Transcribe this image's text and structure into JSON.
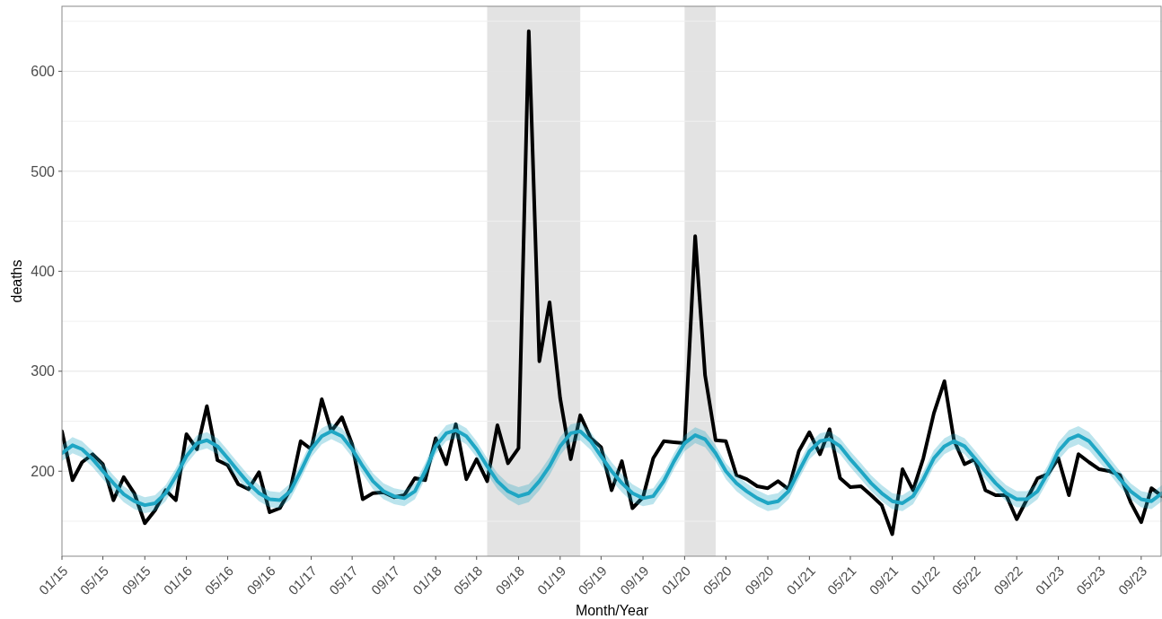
{
  "chart_data": {
    "type": "line",
    "xlabel": "Month/Year",
    "ylabel": "deaths",
    "x": [
      "2015-01",
      "2015-02",
      "2015-03",
      "2015-04",
      "2015-05",
      "2015-06",
      "2015-07",
      "2015-08",
      "2015-09",
      "2015-10",
      "2015-11",
      "2015-12",
      "2016-01",
      "2016-02",
      "2016-03",
      "2016-04",
      "2016-05",
      "2016-06",
      "2016-07",
      "2016-08",
      "2016-09",
      "2016-10",
      "2016-11",
      "2016-12",
      "2017-01",
      "2017-02",
      "2017-03",
      "2017-04",
      "2017-05",
      "2017-06",
      "2017-07",
      "2017-08",
      "2017-09",
      "2017-10",
      "2017-11",
      "2017-12",
      "2018-01",
      "2018-02",
      "2018-03",
      "2018-04",
      "2018-05",
      "2018-06",
      "2018-07",
      "2018-08",
      "2018-09",
      "2018-10",
      "2018-11",
      "2018-12",
      "2019-01",
      "2019-02",
      "2019-03",
      "2019-04",
      "2019-05",
      "2019-06",
      "2019-07",
      "2019-08",
      "2019-09",
      "2019-10",
      "2019-11",
      "2019-12",
      "2020-01",
      "2020-02",
      "2020-03",
      "2020-04",
      "2020-05",
      "2020-06",
      "2020-07",
      "2020-08",
      "2020-09",
      "2020-10",
      "2020-11",
      "2020-12",
      "2021-01",
      "2021-02",
      "2021-03",
      "2021-04",
      "2021-05",
      "2021-06",
      "2021-07",
      "2021-08",
      "2021-09",
      "2021-10",
      "2021-11",
      "2021-12",
      "2022-01",
      "2022-02",
      "2022-03",
      "2022-04",
      "2022-05",
      "2022-06",
      "2022-07",
      "2022-08",
      "2022-09",
      "2022-10",
      "2022-11",
      "2022-12",
      "2023-01",
      "2023-02",
      "2023-03",
      "2023-04",
      "2023-05",
      "2023-06",
      "2023-07",
      "2023-08",
      "2023-09",
      "2023-10",
      "2023-11"
    ],
    "series": [
      {
        "color": "#000000",
        "values": [
          240,
          191,
          209,
          217,
          207,
          171,
          194,
          178,
          148,
          161,
          181,
          171,
          237,
          222,
          265,
          211,
          206,
          187,
          182,
          199,
          159,
          163,
          182,
          230,
          222,
          272,
          240,
          254,
          227,
          172,
          178,
          179,
          174,
          176,
          193,
          191,
          233,
          207,
          247,
          192,
          212,
          190,
          246,
          208,
          223,
          640,
          310,
          369,
          273,
          212,
          256,
          233,
          224,
          181,
          210,
          163,
          174,
          213,
          230,
          229,
          228,
          435,
          296,
          231,
          230,
          196,
          192,
          185,
          183,
          190,
          182,
          220,
          239,
          217,
          242,
          193,
          184,
          185,
          176,
          166,
          137,
          202,
          181,
          213,
          258,
          290,
          231,
          207,
          212,
          181,
          176,
          176,
          152,
          172,
          193,
          197,
          213,
          176,
          217,
          209,
          202,
          200,
          196,
          169,
          149,
          183,
          175
        ]
      },
      {
        "color": "#1fa6c4",
        "values": [
          218,
          226,
          222,
          212,
          200,
          188,
          177,
          170,
          166,
          168,
          178,
          195,
          215,
          228,
          231,
          225,
          213,
          200,
          188,
          178,
          172,
          171,
          180,
          200,
          222,
          235,
          240,
          235,
          222,
          205,
          190,
          180,
          175,
          173,
          180,
          200,
          225,
          238,
          241,
          235,
          222,
          205,
          190,
          180,
          175,
          178,
          190,
          205,
          225,
          238,
          240,
          230,
          215,
          200,
          188,
          178,
          173,
          175,
          190,
          210,
          228,
          236,
          232,
          218,
          200,
          188,
          180,
          173,
          168,
          170,
          180,
          200,
          220,
          230,
          232,
          225,
          212,
          200,
          188,
          178,
          170,
          168,
          175,
          192,
          213,
          225,
          230,
          225,
          213,
          200,
          188,
          178,
          172,
          172,
          180,
          198,
          220,
          232,
          236,
          230,
          218,
          205,
          192,
          180,
          172,
          170,
          178
        ],
        "lower": [
          210,
          218,
          214,
          204,
          192,
          180,
          169,
          162,
          158,
          160,
          170,
          187,
          207,
          220,
          223,
          217,
          205,
          192,
          180,
          170,
          164,
          163,
          172,
          192,
          214,
          227,
          232,
          227,
          214,
          197,
          182,
          172,
          167,
          165,
          172,
          192,
          217,
          230,
          233,
          227,
          214,
          197,
          182,
          172,
          166,
          169,
          181,
          196,
          216,
          229,
          231,
          221,
          206,
          191,
          179,
          169,
          165,
          167,
          182,
          202,
          220,
          228,
          224,
          210,
          192,
          180,
          172,
          165,
          160,
          162,
          172,
          192,
          212,
          222,
          224,
          217,
          204,
          192,
          180,
          170,
          162,
          160,
          167,
          184,
          205,
          217,
          222,
          217,
          205,
          192,
          180,
          170,
          164,
          164,
          172,
          190,
          211,
          223,
          227,
          221,
          209,
          197,
          184,
          172,
          164,
          162,
          170
        ],
        "upper": [
          226,
          234,
          230,
          220,
          208,
          196,
          185,
          178,
          174,
          176,
          186,
          203,
          223,
          236,
          239,
          233,
          221,
          208,
          196,
          186,
          180,
          179,
          188,
          208,
          230,
          243,
          248,
          243,
          230,
          213,
          198,
          188,
          183,
          181,
          188,
          208,
          233,
          246,
          249,
          243,
          230,
          213,
          198,
          188,
          184,
          187,
          199,
          214,
          234,
          247,
          249,
          239,
          224,
          209,
          197,
          187,
          181,
          183,
          198,
          218,
          236,
          244,
          240,
          226,
          208,
          196,
          188,
          181,
          176,
          178,
          188,
          208,
          228,
          238,
          240,
          233,
          220,
          208,
          196,
          186,
          178,
          176,
          183,
          200,
          221,
          233,
          238,
          233,
          221,
          208,
          196,
          186,
          180,
          180,
          188,
          206,
          229,
          241,
          245,
          239,
          227,
          213,
          200,
          188,
          180,
          178,
          186
        ]
      }
    ],
    "xlim": [
      "2015-01",
      "2023-11"
    ],
    "xticks": [
      {
        "value": "2015-01",
        "label": "01/15"
      },
      {
        "value": "2015-05",
        "label": "05/15"
      },
      {
        "value": "2015-09",
        "label": "09/15"
      },
      {
        "value": "2016-01",
        "label": "01/16"
      },
      {
        "value": "2016-05",
        "label": "05/16"
      },
      {
        "value": "2016-09",
        "label": "09/16"
      },
      {
        "value": "2017-01",
        "label": "01/17"
      },
      {
        "value": "2017-05",
        "label": "05/17"
      },
      {
        "value": "2017-09",
        "label": "09/17"
      },
      {
        "value": "2018-01",
        "label": "01/18"
      },
      {
        "value": "2018-05",
        "label": "05/18"
      },
      {
        "value": "2018-09",
        "label": "09/18"
      },
      {
        "value": "2019-01",
        "label": "01/19"
      },
      {
        "value": "2019-05",
        "label": "05/19"
      },
      {
        "value": "2019-09",
        "label": "09/19"
      },
      {
        "value": "2020-01",
        "label": "01/20"
      },
      {
        "value": "2020-05",
        "label": "05/20"
      },
      {
        "value": "2020-09",
        "label": "09/20"
      },
      {
        "value": "2021-01",
        "label": "01/21"
      },
      {
        "value": "2021-05",
        "label": "05/21"
      },
      {
        "value": "2021-09",
        "label": "09/21"
      },
      {
        "value": "2022-01",
        "label": "01/22"
      },
      {
        "value": "2022-05",
        "label": "05/22"
      },
      {
        "value": "2022-09",
        "label": "09/22"
      },
      {
        "value": "2023-01",
        "label": "01/23"
      },
      {
        "value": "2023-05",
        "label": "05/23"
      },
      {
        "value": "2023-09",
        "label": "09/23"
      }
    ],
    "ylim": [
      115,
      665
    ],
    "yticks": [
      {
        "value": 150,
        "label": null
      },
      200,
      {
        "value": 250,
        "label": null
      },
      300,
      {
        "value": 350,
        "label": null
      },
      400,
      {
        "value": 450,
        "label": null
      },
      500,
      {
        "value": 550,
        "label": null
      },
      600,
      {
        "value": 650,
        "label": null
      }
    ],
    "grid": "y",
    "bands": [
      {
        "axis": "x",
        "from": "2018-06",
        "to": "2019-03",
        "color": "#e3e3e3"
      },
      {
        "axis": "x",
        "from": "2020-01",
        "to": "2020-04",
        "color": "#e3e3e3"
      }
    ]
  }
}
